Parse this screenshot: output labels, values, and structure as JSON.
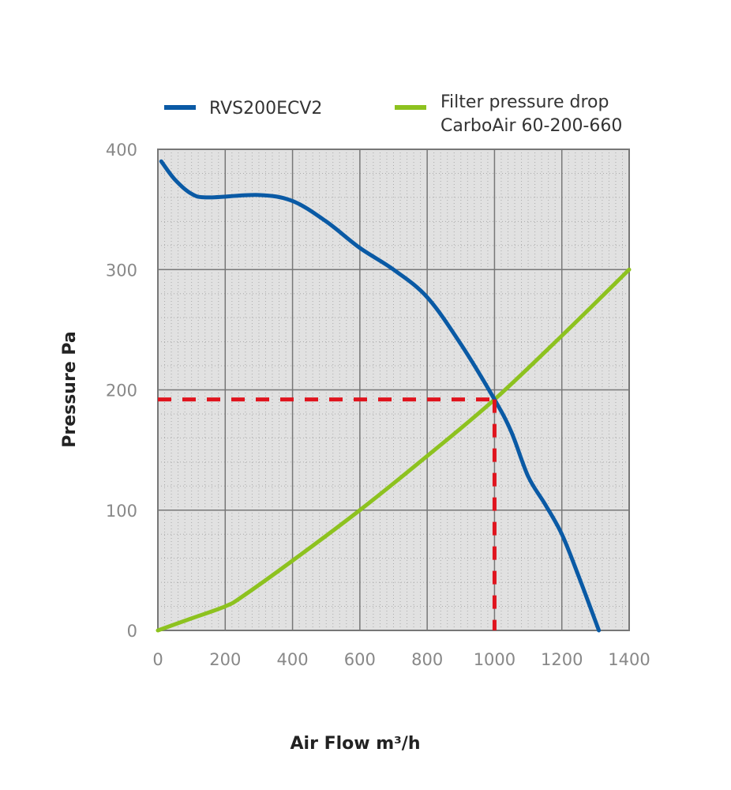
{
  "chart_data": {
    "type": "line",
    "xlabel": "Air Flow m³/h",
    "ylabel": "Pressure Pa",
    "xlim": [
      0,
      1400
    ],
    "ylim": [
      0,
      400
    ],
    "x_ticks": [
      "0",
      "200",
      "400",
      "600",
      "800",
      "1000",
      "1200",
      "1400"
    ],
    "y_ticks": [
      "0",
      "100",
      "200",
      "300",
      "400"
    ],
    "grid": true,
    "legend_position": "top",
    "series": [
      {
        "name": "RVS200ECV2",
        "color": "#0a5aa5",
        "x": [
          10,
          50,
          100,
          150,
          300,
          400,
          500,
          600,
          700,
          800,
          900,
          1000,
          1050,
          1100,
          1150,
          1200,
          1250,
          1310
        ],
        "y": [
          390,
          375,
          363,
          360,
          362,
          357,
          340,
          318,
          300,
          277,
          238,
          192,
          165,
          128,
          105,
          80,
          45,
          0
        ]
      },
      {
        "name": "Filter pressure drop",
        "name_line2": "CarboAir 60-200-660",
        "color": "#8dc21f",
        "x": [
          0,
          100,
          200,
          250,
          400,
          600,
          800,
          1000,
          1200,
          1400
        ],
        "y": [
          0,
          10,
          20,
          28,
          58,
          100,
          145,
          192,
          245,
          300
        ]
      }
    ],
    "operating_point": {
      "x": 1000,
      "y": 192,
      "color": "#e0141e"
    }
  }
}
